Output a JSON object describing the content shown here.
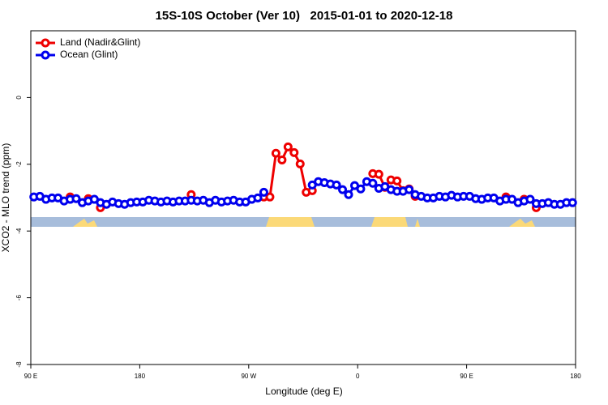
{
  "chart_data": {
    "type": "line",
    "title": "15S-10S October (Ver 10)   2015-01-01 to 2020-12-18",
    "xlabel": "Longitude (deg E)",
    "ylabel": "XCO2 - MLO trend (ppm)",
    "x": [
      92.5,
      97.5,
      102.5,
      107.5,
      112.5,
      117.5,
      122.5,
      127.5,
      132.5,
      137.5,
      142.5,
      147.5,
      152.5,
      157.5,
      162.5,
      167.5,
      172.5,
      177.5,
      182.5,
      187.5,
      192.5,
      197.5,
      202.5,
      207.5,
      212.5,
      217.5,
      222.5,
      227.5,
      232.5,
      237.5,
      242.5,
      247.5,
      252.5,
      257.5,
      262.5,
      267.5,
      272.5,
      277.5,
      282.5,
      287.5,
      292.5,
      297.5,
      302.5,
      307.5,
      312.5,
      317.5,
      322.5,
      327.5,
      332.5,
      337.5,
      342.5,
      347.5,
      352.5,
      357.5,
      362.5,
      367.5,
      372.5,
      377.5,
      382.5,
      387.5,
      392.5,
      397.5,
      402.5,
      407.5,
      412.5,
      417.5,
      422.5,
      427.5,
      432.5,
      437.5,
      442.5,
      447.5,
      452.5,
      457.5,
      462.5,
      467.5,
      472.5,
      477.5,
      482.5,
      487.5,
      492.5,
      497.5,
      502.5,
      507.5,
      512.5,
      517.5,
      522.5,
      527.5,
      532.5,
      537.5
    ],
    "series": [
      {
        "name": "Land (Nadir&Glint)",
        "color": "#ee0000",
        "values": [
          null,
          null,
          null,
          null,
          null,
          null,
          -2.98,
          null,
          null,
          -3.03,
          null,
          -3.3,
          null,
          null,
          null,
          null,
          null,
          null,
          null,
          null,
          null,
          null,
          null,
          null,
          null,
          null,
          -2.91,
          null,
          null,
          null,
          null,
          null,
          null,
          null,
          null,
          null,
          null,
          null,
          -2.98,
          -2.98,
          -1.67,
          -1.87,
          -1.48,
          -1.65,
          -1.99,
          -2.84,
          -2.79,
          null,
          null,
          null,
          null,
          null,
          null,
          null,
          null,
          null,
          -2.28,
          -2.3,
          -2.69,
          -2.47,
          -2.5,
          -2.79,
          -2.74,
          -2.96,
          null,
          null,
          null,
          null,
          null,
          null,
          null,
          null,
          null,
          null,
          null,
          null,
          null,
          null,
          -2.98,
          null,
          null,
          -3.05,
          null,
          -3.3,
          null,
          null,
          null,
          null,
          null,
          null
        ]
      },
      {
        "name": "Ocean (Glint)",
        "color": "#0000ee",
        "values": [
          -2.98,
          -2.96,
          -3.05,
          -3.01,
          -3.01,
          -3.1,
          -3.05,
          -3.03,
          -3.15,
          -3.1,
          -3.05,
          -3.15,
          -3.2,
          -3.13,
          -3.18,
          -3.2,
          -3.15,
          -3.13,
          -3.13,
          -3.08,
          -3.1,
          -3.13,
          -3.1,
          -3.13,
          -3.1,
          -3.1,
          -3.08,
          -3.1,
          -3.08,
          -3.15,
          -3.08,
          -3.13,
          -3.1,
          -3.08,
          -3.13,
          -3.13,
          -3.05,
          -3.01,
          -2.84,
          null,
          null,
          null,
          null,
          null,
          null,
          null,
          -2.62,
          -2.52,
          -2.55,
          -2.59,
          -2.62,
          -2.76,
          -2.91,
          -2.64,
          -2.74,
          -2.52,
          -2.57,
          -2.72,
          -2.67,
          -2.76,
          -2.81,
          -2.81,
          -2.76,
          -2.91,
          -2.96,
          -3.01,
          -3.01,
          -2.96,
          -2.98,
          -2.93,
          -2.98,
          -2.96,
          -2.96,
          -3.03,
          -3.05,
          -3.01,
          -3.01,
          -3.1,
          -3.05,
          -3.05,
          -3.15,
          -3.1,
          -3.05,
          -3.18,
          -3.18,
          -3.15,
          -3.2,
          -3.2,
          -3.15,
          -3.15
        ]
      }
    ],
    "xlim": [
      90,
      540
    ],
    "xticks": [
      {
        "value": 90,
        "label": "90 E"
      },
      180,
      {
        "value": 270,
        "label": "90 W"
      },
      {
        "value": 360,
        "label": "0"
      },
      {
        "value": 450,
        "label": "90 E"
      },
      {
        "value": 540,
        "label": "180"
      }
    ],
    "ylim": [
      -8,
      2
    ],
    "yticks": [
      -8,
      -6,
      -4,
      -2,
      0
    ],
    "legend": "top-left"
  }
}
